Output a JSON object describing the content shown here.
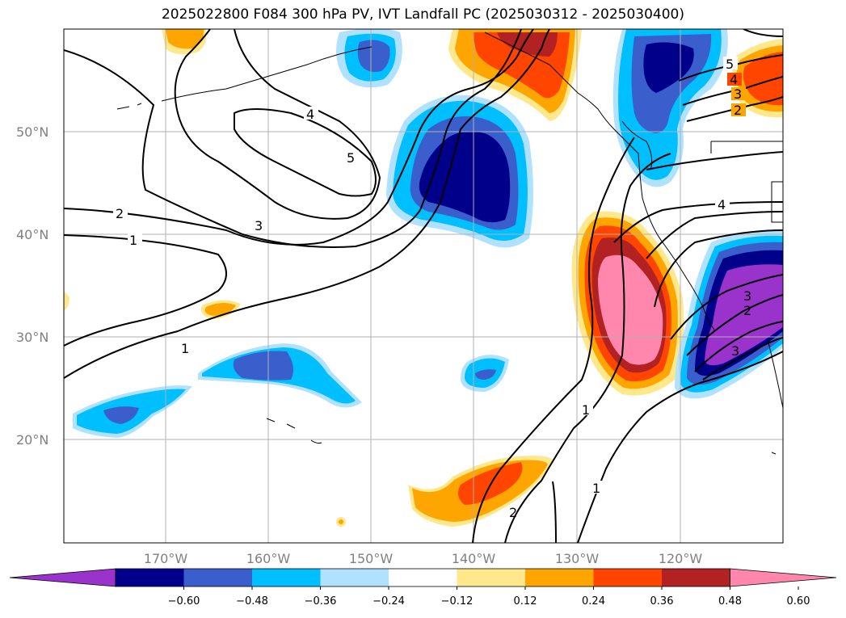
{
  "title": "2025022800 F084 300 hPa PV, IVT Landfall PC (2025030312 - 2025030400)",
  "lat_labels": [
    "50°N",
    "40°N",
    "30°N",
    "20°N"
  ],
  "lon_labels": [
    "170°W",
    "160°W",
    "150°W",
    "140°W",
    "130°W",
    "120°W"
  ],
  "colorbar": {
    "colors": [
      "#9933cc",
      "#00008b",
      "#3a5fcd",
      "#00bfff",
      "#b0e2ff",
      "#ffffff",
      "#ffe78c",
      "#ffa500",
      "#ff4500",
      "#b22222",
      "#ff86ac"
    ],
    "tick_labels": [
      "−0.60",
      "−0.48",
      "−0.36",
      "−0.24",
      "−0.12",
      "0.12",
      "0.24",
      "0.36",
      "0.48",
      "0.60"
    ]
  },
  "contour_labels": [
    "1",
    "2",
    "3",
    "4",
    "5",
    "1",
    "1",
    "1",
    "4",
    "3",
    "2",
    "4",
    "5",
    "2",
    "3",
    "2",
    "3"
  ],
  "colors": {
    "grid": "#b0b0b0",
    "contour": "#000000",
    "coast": "#000000"
  }
}
